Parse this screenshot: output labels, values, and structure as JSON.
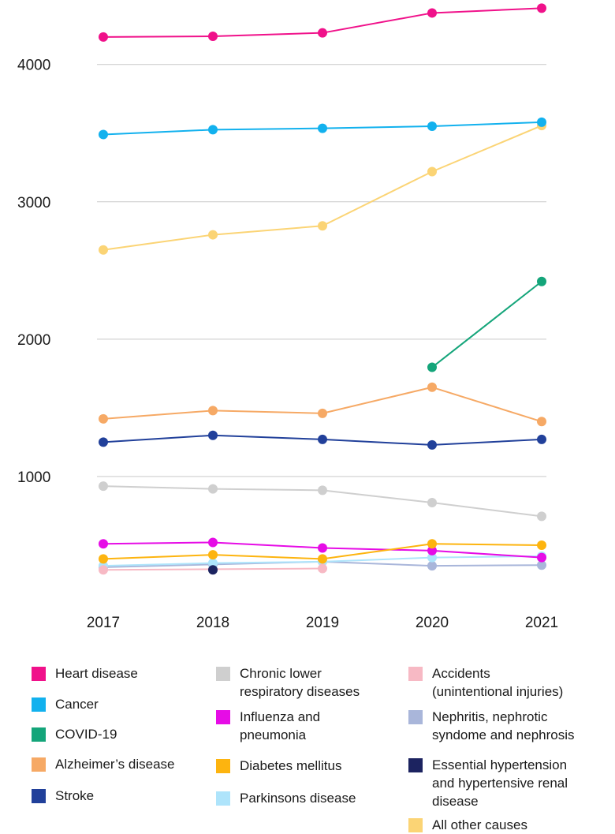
{
  "chart_data": {
    "type": "line",
    "title": "",
    "xlabel": "",
    "ylabel": "",
    "x": [
      "2017",
      "2018",
      "2019",
      "2020",
      "2021"
    ],
    "y_ticks": [
      "1000",
      "2000",
      "3000",
      "4000"
    ],
    "ylim": [
      0,
      4500
    ],
    "grid": "horizontal",
    "legend_position": "bottom",
    "series": [
      {
        "name": "Heart disease",
        "color": "#f0118a",
        "values": [
          4200,
          4205,
          4230,
          4375,
          4410
        ]
      },
      {
        "name": "Cancer",
        "color": "#12b1ee",
        "values": [
          3490,
          3525,
          3535,
          3550,
          3580
        ]
      },
      {
        "name": "COVID-19",
        "color": "#14a57a",
        "values": [
          null,
          null,
          null,
          1795,
          2420
        ]
      },
      {
        "name": "Alzheimer’s disease",
        "color": "#f6a965",
        "values": [
          1420,
          1480,
          1460,
          1650,
          1400
        ]
      },
      {
        "name": "Stroke",
        "color": "#21409a",
        "values": [
          1250,
          1300,
          1270,
          1230,
          1270
        ]
      },
      {
        "name": "Chronic lower\nrespiratory diseases",
        "color": "#cfcfcf",
        "values": [
          930,
          910,
          900,
          810,
          710
        ]
      },
      {
        "name": "Influenza and\npneumonia",
        "color": "#e60ce6",
        "values": [
          510,
          520,
          480,
          460,
          410
        ]
      },
      {
        "name": "Diabetes mellitus",
        "color": "#fdb40f",
        "values": [
          400,
          430,
          400,
          510,
          500
        ]
      },
      {
        "name": "Parkinsons disease",
        "color": "#aee4fb",
        "values": [
          350,
          370,
          380,
          410,
          420
        ]
      },
      {
        "name": "Accidents\n(unintentional injuries)",
        "color": "#f7b9c4",
        "values": [
          320,
          null,
          330,
          null,
          null
        ]
      },
      {
        "name": "Nephritis, nephrotic\nsyndome and nephrosis",
        "color": "#a9b6da",
        "values": [
          340,
          360,
          380,
          350,
          355
        ]
      },
      {
        "name": "Essential hypertension\nand hypertensive renal\ndisease",
        "color": "#1c2360",
        "values": [
          null,
          320,
          null,
          null,
          null
        ]
      },
      {
        "name": "All other causes",
        "color": "#fbd475",
        "values": [
          2650,
          2760,
          2825,
          3220,
          3555
        ]
      }
    ]
  }
}
